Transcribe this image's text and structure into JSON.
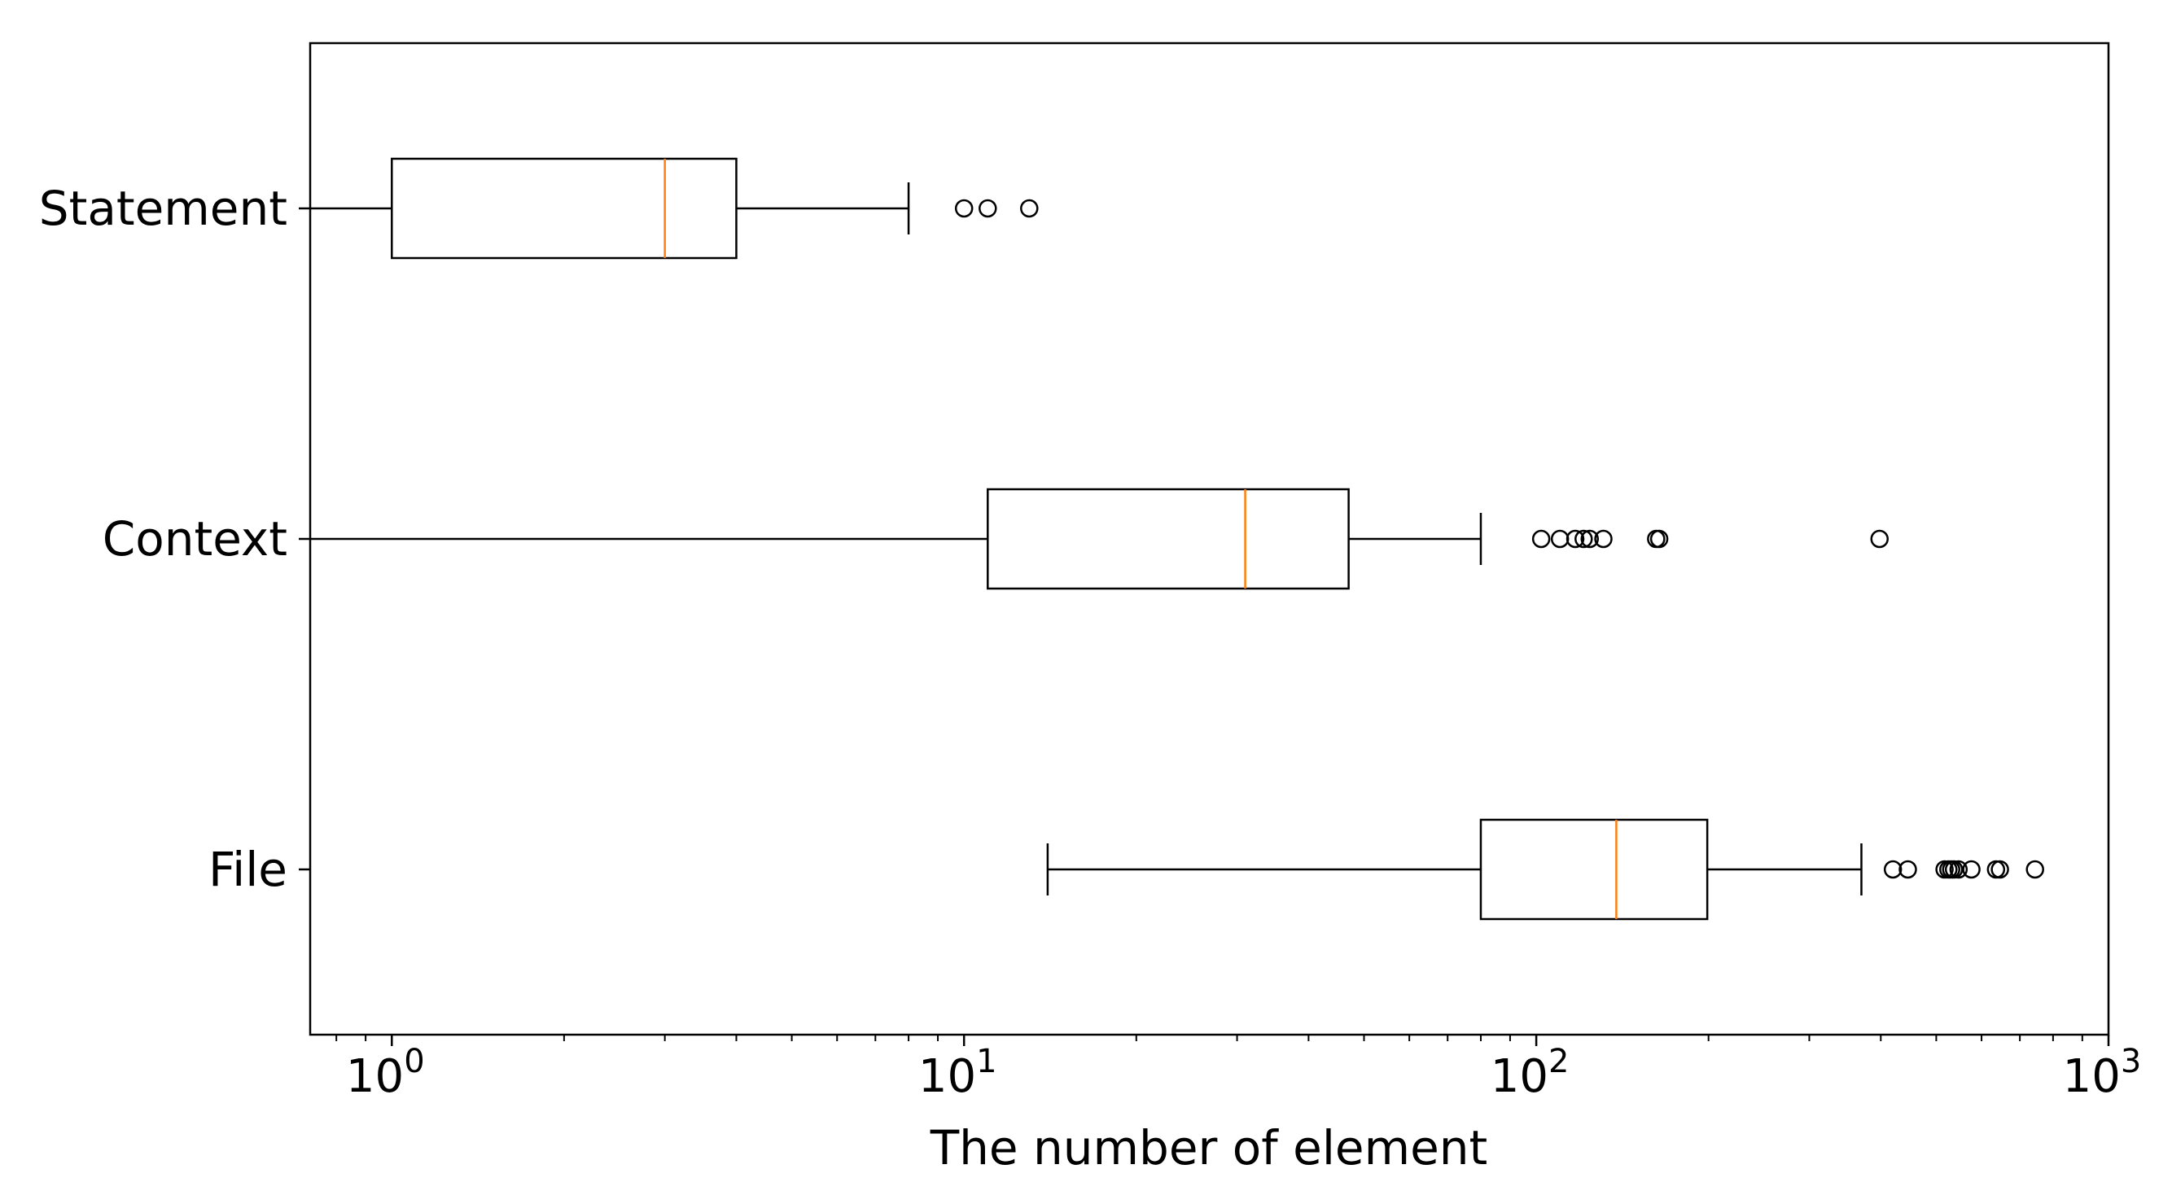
{
  "chart_data": {
    "type": "boxplot",
    "orientation": "horizontal",
    "xscale": "log",
    "xlim": [
      0.72,
      1000
    ],
    "xlabel": "The number of element",
    "ylabel": "",
    "title": "",
    "grid": false,
    "x_ticks": [
      {
        "value": 1,
        "base": "10",
        "exp": "0"
      },
      {
        "value": 10,
        "base": "10",
        "exp": "1"
      },
      {
        "value": 100,
        "base": "10",
        "exp": "2"
      },
      {
        "value": 1000,
        "base": "10",
        "exp": "3"
      }
    ],
    "categories": [
      "Statement",
      "Context",
      "File"
    ],
    "series": [
      {
        "name": "Statement",
        "whisker_low": 0.72,
        "q1": 1,
        "median": 3,
        "q3": 4,
        "whisker_high": 8,
        "outliers": [
          10,
          11,
          13
        ]
      },
      {
        "name": "Context",
        "whisker_low": 0.72,
        "q1": 11,
        "median": 31,
        "q3": 47,
        "whisker_high": 80,
        "outliers": [
          102,
          110,
          117,
          121,
          124,
          131,
          162,
          164,
          398
        ]
      },
      {
        "name": "File",
        "whisker_low": 14,
        "q1": 80,
        "median": 138,
        "q3": 199,
        "whisker_high": 370,
        "outliers": [
          420,
          446,
          517,
          525,
          531,
          537,
          547,
          576,
          636,
          646,
          744
        ]
      }
    ],
    "colors": {
      "box": "#000000",
      "median": "#ff7f0e",
      "outlier": "#000000"
    }
  }
}
